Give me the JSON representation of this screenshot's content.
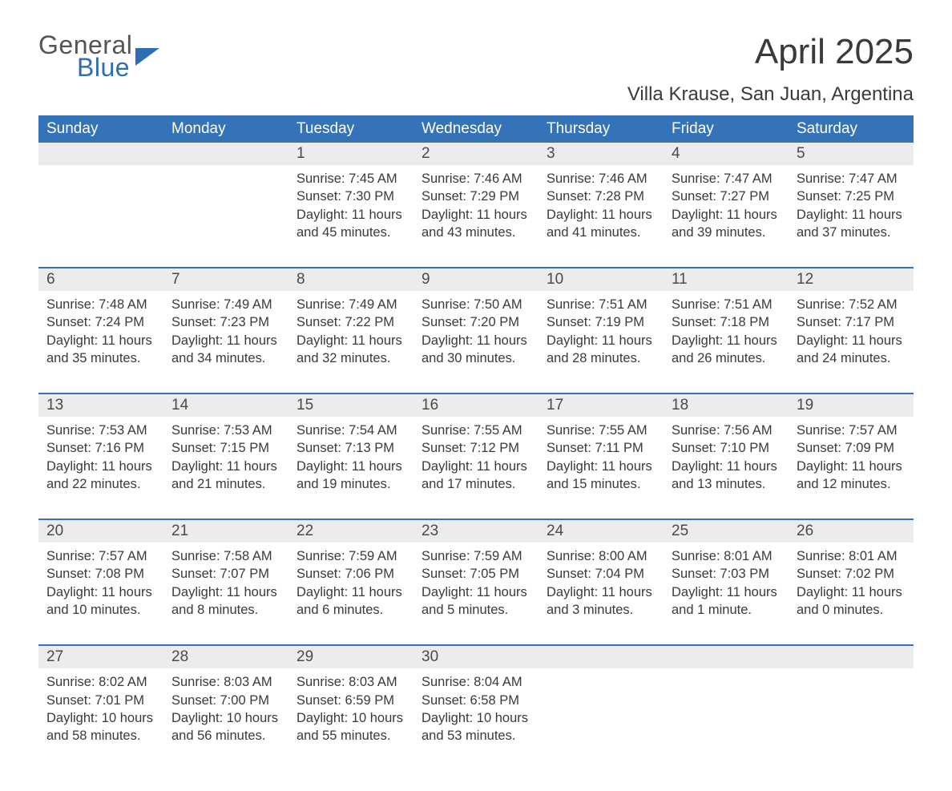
{
  "brand": {
    "line1": "General",
    "line2": "Blue"
  },
  "title": "April 2025",
  "location": "Villa Krause, San Juan, Argentina",
  "colors": {
    "header_bg": "#3573b9",
    "header_text": "#ffffff",
    "daynum_bg": "#ececec",
    "week_border": "#3573b9",
    "text": "#3a3a3a",
    "logo_blue": "#2d6db3",
    "background": "#ffffff"
  },
  "typography": {
    "title_fontsize": 44,
    "location_fontsize": 24,
    "header_fontsize": 19,
    "daynum_fontsize": 19,
    "body_fontsize": 16.5,
    "logo_fontsize": 32
  },
  "day_labels": [
    "Sunday",
    "Monday",
    "Tuesday",
    "Wednesday",
    "Thursday",
    "Friday",
    "Saturday"
  ],
  "weeks": [
    [
      null,
      null,
      {
        "n": "1",
        "sunrise": "7:45 AM",
        "sunset": "7:30 PM",
        "daylight": "11 hours and 45 minutes."
      },
      {
        "n": "2",
        "sunrise": "7:46 AM",
        "sunset": "7:29 PM",
        "daylight": "11 hours and 43 minutes."
      },
      {
        "n": "3",
        "sunrise": "7:46 AM",
        "sunset": "7:28 PM",
        "daylight": "11 hours and 41 minutes."
      },
      {
        "n": "4",
        "sunrise": "7:47 AM",
        "sunset": "7:27 PM",
        "daylight": "11 hours and 39 minutes."
      },
      {
        "n": "5",
        "sunrise": "7:47 AM",
        "sunset": "7:25 PM",
        "daylight": "11 hours and 37 minutes."
      }
    ],
    [
      {
        "n": "6",
        "sunrise": "7:48 AM",
        "sunset": "7:24 PM",
        "daylight": "11 hours and 35 minutes."
      },
      {
        "n": "7",
        "sunrise": "7:49 AM",
        "sunset": "7:23 PM",
        "daylight": "11 hours and 34 minutes."
      },
      {
        "n": "8",
        "sunrise": "7:49 AM",
        "sunset": "7:22 PM",
        "daylight": "11 hours and 32 minutes."
      },
      {
        "n": "9",
        "sunrise": "7:50 AM",
        "sunset": "7:20 PM",
        "daylight": "11 hours and 30 minutes."
      },
      {
        "n": "10",
        "sunrise": "7:51 AM",
        "sunset": "7:19 PM",
        "daylight": "11 hours and 28 minutes."
      },
      {
        "n": "11",
        "sunrise": "7:51 AM",
        "sunset": "7:18 PM",
        "daylight": "11 hours and 26 minutes."
      },
      {
        "n": "12",
        "sunrise": "7:52 AM",
        "sunset": "7:17 PM",
        "daylight": "11 hours and 24 minutes."
      }
    ],
    [
      {
        "n": "13",
        "sunrise": "7:53 AM",
        "sunset": "7:16 PM",
        "daylight": "11 hours and 22 minutes."
      },
      {
        "n": "14",
        "sunrise": "7:53 AM",
        "sunset": "7:15 PM",
        "daylight": "11 hours and 21 minutes."
      },
      {
        "n": "15",
        "sunrise": "7:54 AM",
        "sunset": "7:13 PM",
        "daylight": "11 hours and 19 minutes."
      },
      {
        "n": "16",
        "sunrise": "7:55 AM",
        "sunset": "7:12 PM",
        "daylight": "11 hours and 17 minutes."
      },
      {
        "n": "17",
        "sunrise": "7:55 AM",
        "sunset": "7:11 PM",
        "daylight": "11 hours and 15 minutes."
      },
      {
        "n": "18",
        "sunrise": "7:56 AM",
        "sunset": "7:10 PM",
        "daylight": "11 hours and 13 minutes."
      },
      {
        "n": "19",
        "sunrise": "7:57 AM",
        "sunset": "7:09 PM",
        "daylight": "11 hours and 12 minutes."
      }
    ],
    [
      {
        "n": "20",
        "sunrise": "7:57 AM",
        "sunset": "7:08 PM",
        "daylight": "11 hours and 10 minutes."
      },
      {
        "n": "21",
        "sunrise": "7:58 AM",
        "sunset": "7:07 PM",
        "daylight": "11 hours and 8 minutes."
      },
      {
        "n": "22",
        "sunrise": "7:59 AM",
        "sunset": "7:06 PM",
        "daylight": "11 hours and 6 minutes."
      },
      {
        "n": "23",
        "sunrise": "7:59 AM",
        "sunset": "7:05 PM",
        "daylight": "11 hours and 5 minutes."
      },
      {
        "n": "24",
        "sunrise": "8:00 AM",
        "sunset": "7:04 PM",
        "daylight": "11 hours and 3 minutes."
      },
      {
        "n": "25",
        "sunrise": "8:01 AM",
        "sunset": "7:03 PM",
        "daylight": "11 hours and 1 minute."
      },
      {
        "n": "26",
        "sunrise": "8:01 AM",
        "sunset": "7:02 PM",
        "daylight": "11 hours and 0 minutes."
      }
    ],
    [
      {
        "n": "27",
        "sunrise": "8:02 AM",
        "sunset": "7:01 PM",
        "daylight": "10 hours and 58 minutes."
      },
      {
        "n": "28",
        "sunrise": "8:03 AM",
        "sunset": "7:00 PM",
        "daylight": "10 hours and 56 minutes."
      },
      {
        "n": "29",
        "sunrise": "8:03 AM",
        "sunset": "6:59 PM",
        "daylight": "10 hours and 55 minutes."
      },
      {
        "n": "30",
        "sunrise": "8:04 AM",
        "sunset": "6:58 PM",
        "daylight": "10 hours and 53 minutes."
      },
      null,
      null,
      null
    ]
  ],
  "labels": {
    "sunrise": "Sunrise: ",
    "sunset": "Sunset: ",
    "daylight": "Daylight: "
  }
}
